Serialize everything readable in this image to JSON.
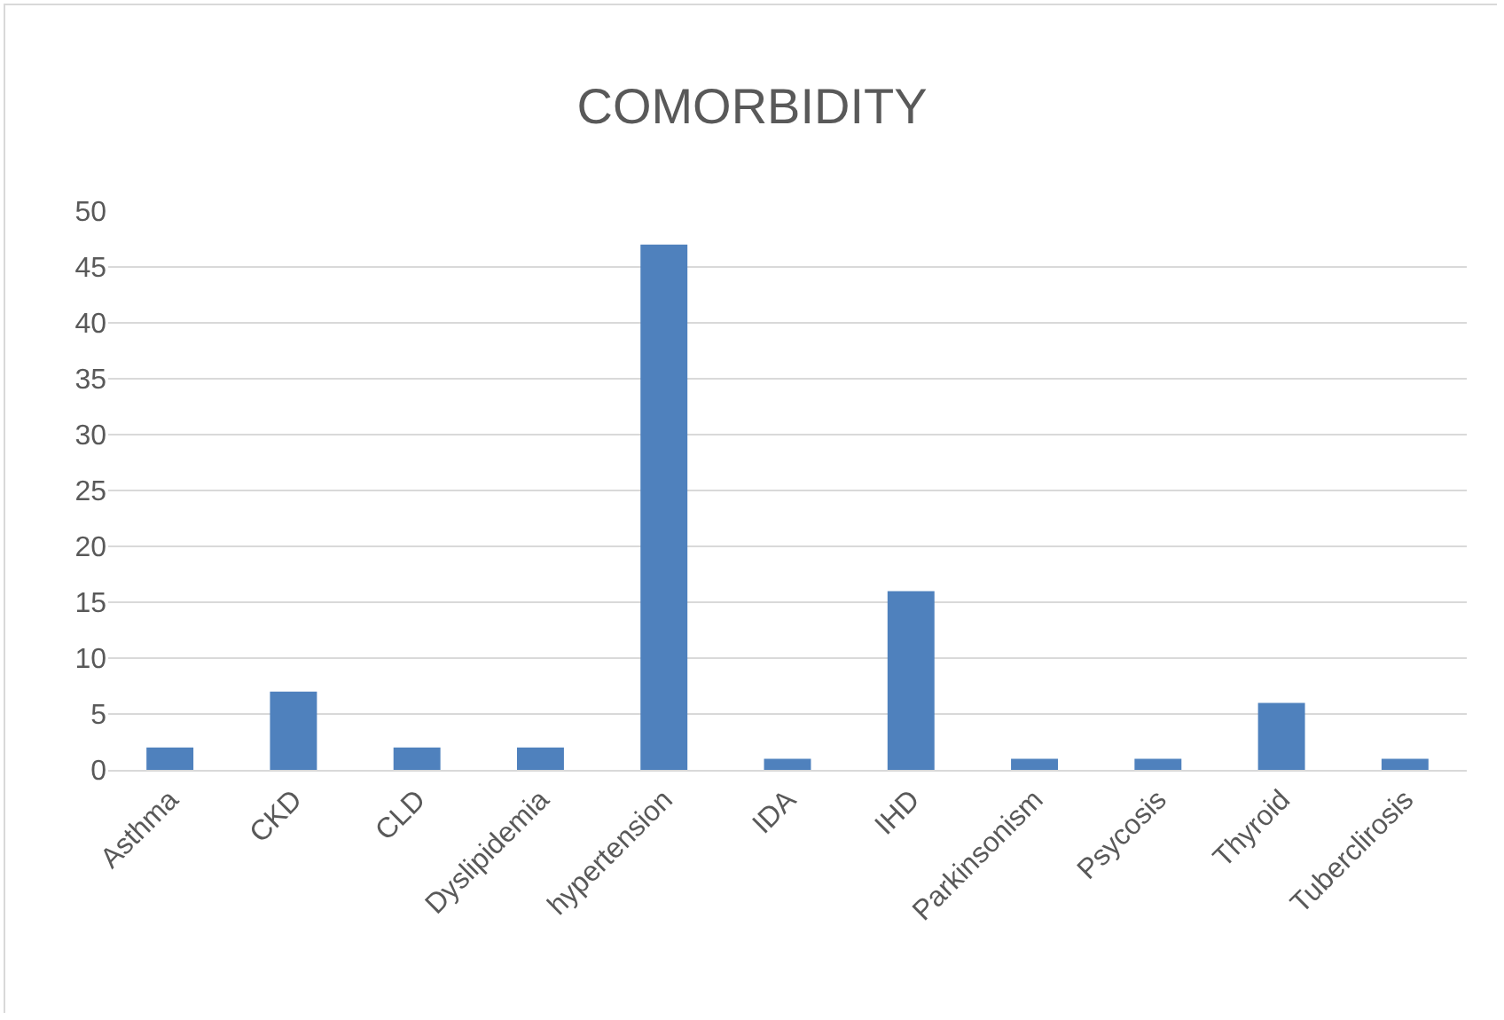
{
  "chart_data": {
    "type": "bar",
    "title": "COMORBIDITY",
    "categories": [
      "Asthma",
      "CKD",
      "CLD",
      "Dyslipidemia",
      "hypertension",
      "IDA",
      "IHD",
      "Parkinsonism",
      "Psycosis",
      "Thyroid",
      "Tuberclirosis"
    ],
    "values": [
      2,
      7,
      2,
      2,
      47,
      1,
      16,
      1,
      1,
      6,
      1
    ],
    "color": "#4f81bd",
    "ylim": [
      0,
      50
    ],
    "yticks": [
      0,
      5,
      10,
      15,
      20,
      25,
      30,
      35,
      40,
      45,
      50
    ],
    "grid": "y"
  }
}
